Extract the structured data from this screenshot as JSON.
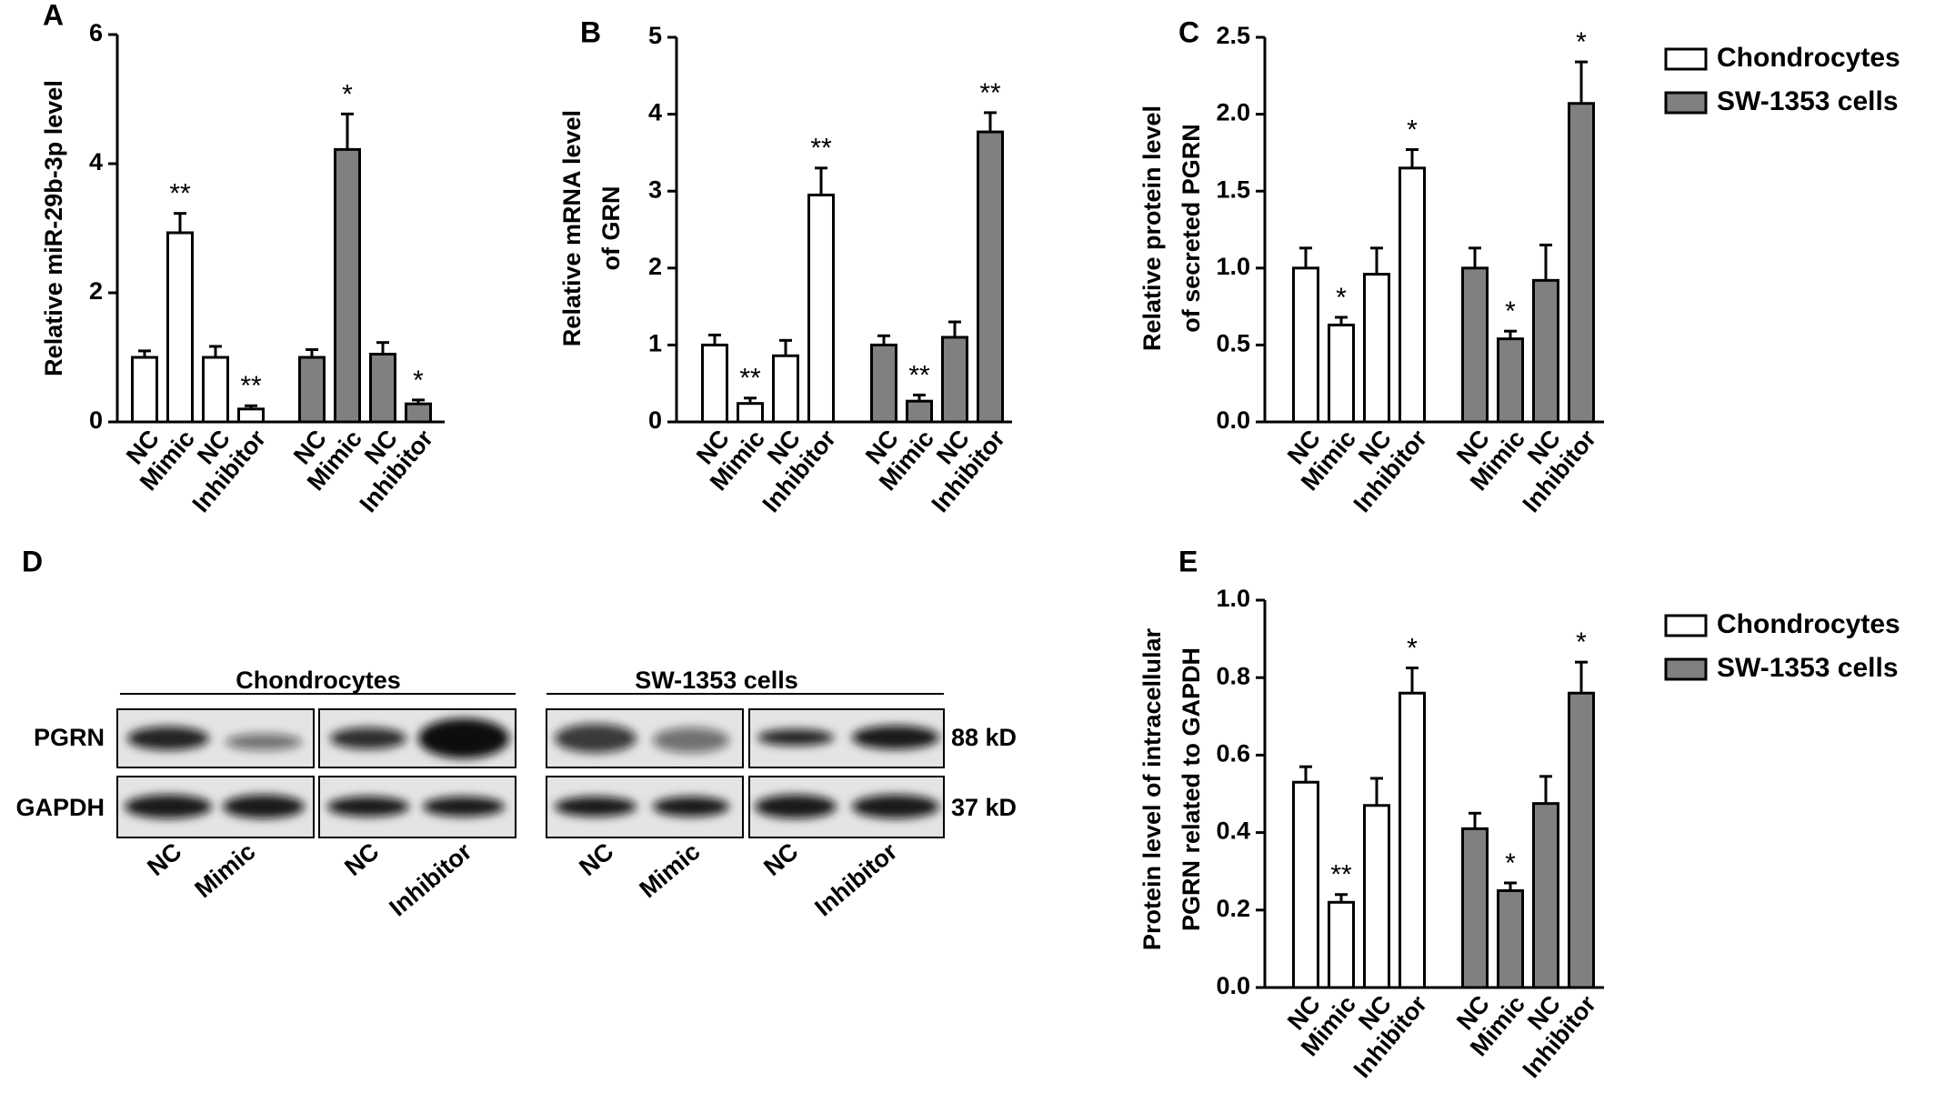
{
  "chart_data": [
    {
      "type": "bar",
      "panel": "A",
      "y_label": [
        "Relative miR-29b-3p level"
      ],
      "categories": [
        "NC",
        "Mimic",
        "NC",
        "Inhibitor"
      ],
      "ylim": [
        0,
        6
      ],
      "yticks": [
        0,
        2,
        4,
        6
      ],
      "series": [
        {
          "name": "Chondrocytes",
          "color": "#ffffff",
          "values": [
            1.0,
            2.93,
            1.0,
            0.2
          ],
          "errors": [
            0.1,
            0.3,
            0.17,
            0.05
          ],
          "annotations": [
            null,
            "**",
            null,
            "**"
          ]
        },
        {
          "name": "SW-1353 cells",
          "color": "#808080",
          "values": [
            1.0,
            4.22,
            1.05,
            0.28
          ],
          "errors": [
            0.12,
            0.55,
            0.18,
            0.06
          ],
          "annotations": [
            null,
            "*",
            null,
            "*"
          ]
        }
      ]
    },
    {
      "type": "bar",
      "panel": "B",
      "y_label": [
        "Relative mRNA level",
        "of GRN"
      ],
      "categories": [
        "NC",
        "Mimic",
        "NC",
        "Inhibitor"
      ],
      "ylim": [
        0,
        5
      ],
      "yticks": [
        0,
        1,
        2,
        3,
        4,
        5
      ],
      "series": [
        {
          "name": "Chondrocytes",
          "color": "#ffffff",
          "values": [
            1.0,
            0.24,
            0.86,
            2.95
          ],
          "errors": [
            0.13,
            0.07,
            0.2,
            0.35
          ],
          "annotations": [
            null,
            "**",
            null,
            "**"
          ]
        },
        {
          "name": "SW-1353 cells",
          "color": "#808080",
          "values": [
            1.0,
            0.27,
            1.1,
            3.77
          ],
          "errors": [
            0.12,
            0.08,
            0.2,
            0.25
          ],
          "annotations": [
            null,
            "**",
            null,
            "**"
          ]
        }
      ]
    },
    {
      "type": "bar",
      "panel": "C",
      "y_label": [
        "Relative protein level",
        "of secreted PGRN"
      ],
      "categories": [
        "NC",
        "Mimic",
        "NC",
        "Inhibitor"
      ],
      "ylim": [
        0,
        2.5
      ],
      "yticks": [
        {
          "value": 0,
          "label": "0.0"
        },
        0.5,
        {
          "value": 1,
          "label": "1.0"
        },
        1.5,
        {
          "value": 2,
          "label": "2.0"
        },
        2.5
      ],
      "legend": true,
      "series": [
        {
          "name": "Chondrocytes",
          "color": "#ffffff",
          "values": [
            1.0,
            0.63,
            0.96,
            1.65
          ],
          "errors": [
            0.13,
            0.05,
            0.17,
            0.12
          ],
          "annotations": [
            null,
            "*",
            null,
            "*"
          ]
        },
        {
          "name": "SW-1353 cells",
          "color": "#808080",
          "values": [
            1.0,
            0.54,
            0.92,
            2.07
          ],
          "errors": [
            0.13,
            0.05,
            0.23,
            0.27
          ],
          "annotations": [
            null,
            "*",
            null,
            "*"
          ]
        }
      ]
    },
    {
      "type": "bar",
      "panel": "E",
      "y_label": [
        "Protein level of intracellular",
        "PGRN related to GAPDH"
      ],
      "categories": [
        "NC",
        "Mimic",
        "NC",
        "Inhibitor"
      ],
      "ylim": [
        0,
        1
      ],
      "yticks": [
        {
          "value": 0,
          "label": "0.0"
        },
        0.2,
        0.4,
        0.6,
        0.8,
        {
          "value": 1,
          "label": "1.0"
        }
      ],
      "legend": true,
      "series": [
        {
          "name": "Chondrocytes",
          "color": "#ffffff",
          "values": [
            0.53,
            0.22,
            0.47,
            0.76
          ],
          "errors": [
            0.04,
            0.02,
            0.07,
            0.065
          ],
          "annotations": [
            null,
            "**",
            null,
            "*"
          ]
        },
        {
          "name": "SW-1353 cells",
          "color": "#808080",
          "values": [
            0.41,
            0.25,
            0.475,
            0.76
          ],
          "errors": [
            0.04,
            0.02,
            0.07,
            0.08
          ],
          "annotations": [
            null,
            "*",
            null,
            "*"
          ]
        }
      ]
    }
  ],
  "blot": {
    "panel": "D",
    "groups": [
      "Chondrocytes",
      "SW-1353 cells"
    ],
    "rows": [
      "PGRN",
      "GAPDH"
    ],
    "sizes": [
      "88 kD",
      "37 kD"
    ],
    "lanes": [
      "NC",
      "Mimic",
      "NC",
      "Inhibitor",
      "NC",
      "Mimic",
      "NC",
      "Inhibitor"
    ]
  }
}
